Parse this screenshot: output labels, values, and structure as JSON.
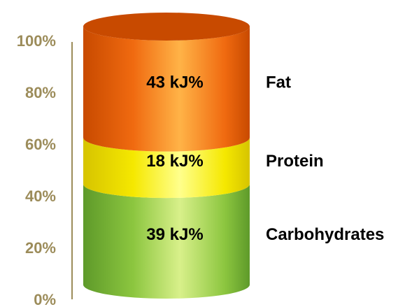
{
  "chart_data": {
    "type": "bar",
    "subtype": "stacked-100-cylinder",
    "ylim": [
      0,
      100
    ],
    "y_ticks": [
      "0%",
      "20%",
      "40%",
      "60%",
      "80%",
      "100%"
    ],
    "segments": [
      {
        "name": "Carbohydrates",
        "value": 39,
        "label": "39 kJ%",
        "color": "#8CC63F",
        "color_light": "#D8F08A",
        "color_dark": "#5E9A2A"
      },
      {
        "name": "Protein",
        "value": 18,
        "label": "18 kJ%",
        "color": "#F5E800",
        "color_light": "#FFFF8C",
        "color_dark": "#D6C400"
      },
      {
        "name": "Fat",
        "value": 43,
        "label": "43 kJ%",
        "color": "#F06A10",
        "color_light": "#FFB347",
        "color_dark": "#C84A00"
      }
    ],
    "axis_color": "#9C8C5A",
    "top_cap_color": "#C84A00"
  }
}
